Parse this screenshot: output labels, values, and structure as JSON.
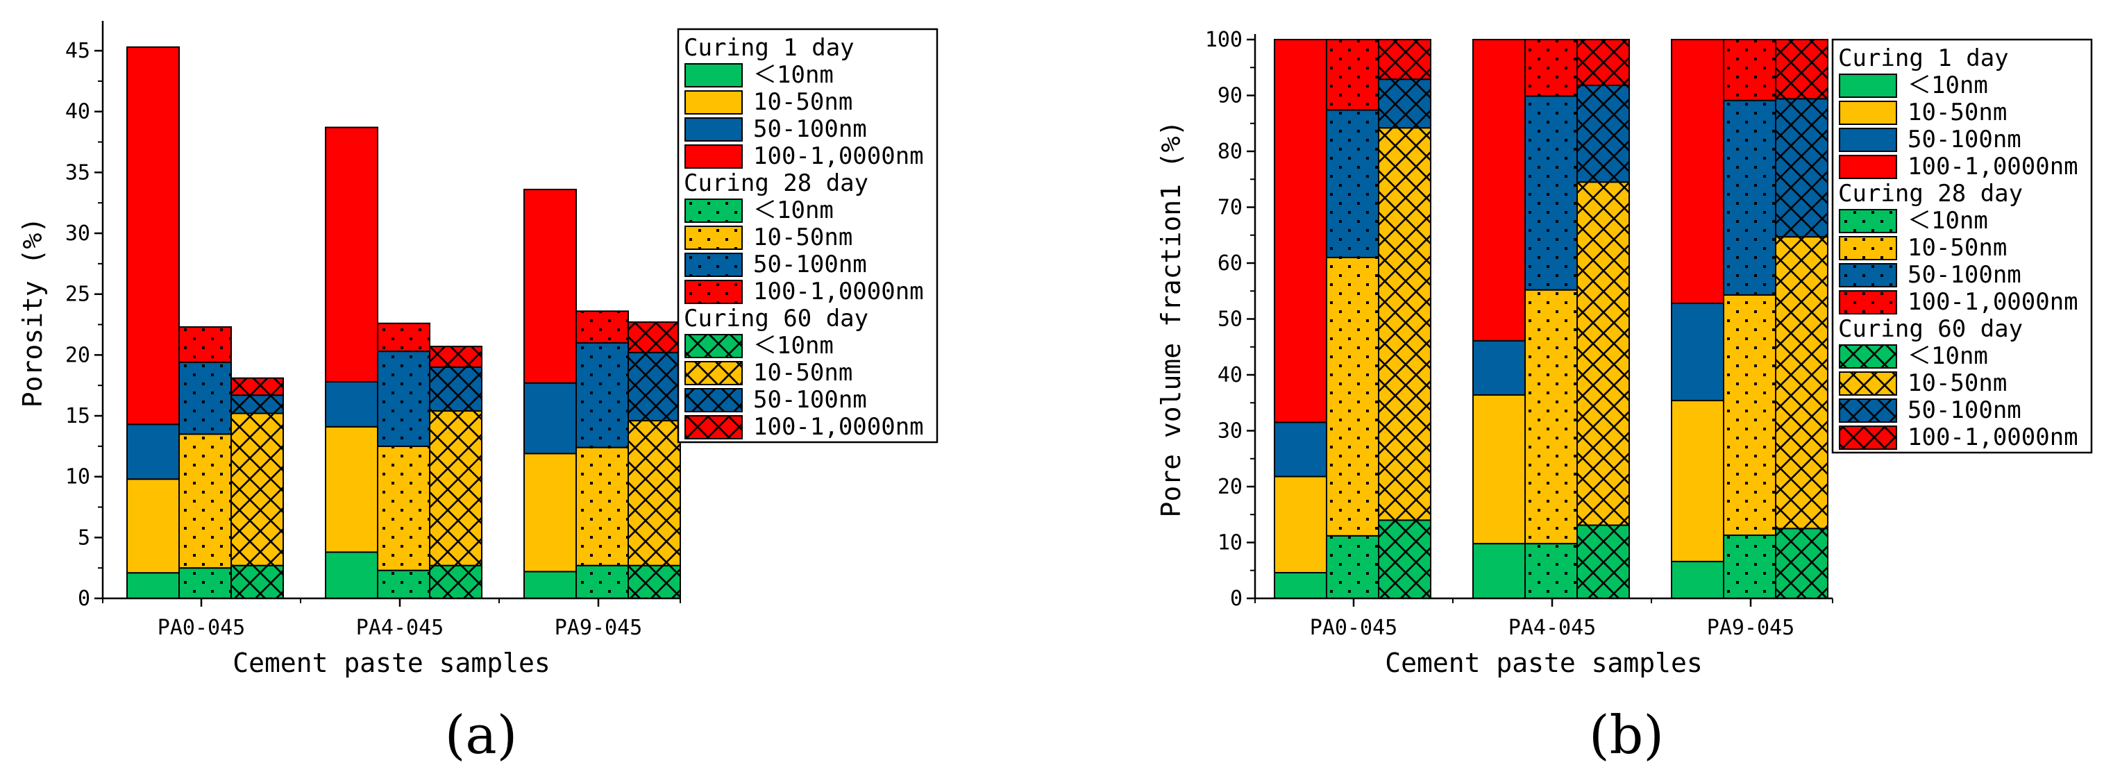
{
  "chart_data": [
    {
      "panel_label": "(a)",
      "type": "stacked-bar",
      "xlabel": "Cement paste samples",
      "ylabel": "Porosity (%)",
      "ylim": [
        0,
        47
      ],
      "yticks": [
        0,
        5,
        10,
        15,
        20,
        25,
        30,
        35,
        40,
        45
      ],
      "samples": [
        "PA0-045",
        "PA4-045",
        "PA9-045"
      ],
      "curing_groups": [
        "Curing 1 day",
        "Curing 28 day",
        "Curing 60 day"
      ],
      "pore_ranges": [
        "<10nm",
        "10-50nm",
        "50-100nm",
        "100-1,0000nm"
      ],
      "legend_labels": [
        "＜10nm",
        "10-50nm",
        "50-100nm",
        "100-1,0000nm"
      ],
      "colors": [
        "#00c060",
        "#ffc000",
        "#0060a0",
        "#ff0000"
      ],
      "patterns": [
        "solid",
        "dots",
        "crosshatch"
      ],
      "values": {
        "PA0-045": [
          [
            2.1,
            7.7,
            4.5,
            31.0
          ],
          [
            2.5,
            11.0,
            5.9,
            2.9
          ],
          [
            2.7,
            12.5,
            1.5,
            1.4
          ]
        ],
        "PA4-045": [
          [
            3.8,
            10.3,
            3.7,
            20.9
          ],
          [
            2.3,
            10.2,
            7.8,
            2.3
          ],
          [
            2.7,
            12.7,
            3.6,
            1.7
          ]
        ],
        "PA9-045": [
          [
            2.2,
            9.7,
            5.8,
            15.9
          ],
          [
            2.7,
            9.7,
            8.6,
            2.6
          ],
          [
            2.7,
            11.9,
            5.6,
            2.5
          ]
        ]
      },
      "legend_position": "top-right outside"
    },
    {
      "panel_label": "(b)",
      "type": "stacked-bar",
      "xlabel": "Cement paste samples",
      "ylabel": "Pore volume fraction1 (%)",
      "ylim": [
        0,
        100
      ],
      "yticks": [
        0,
        10,
        20,
        30,
        40,
        50,
        60,
        70,
        80,
        90,
        100
      ],
      "samples": [
        "PA0-045",
        "PA4-045",
        "PA9-045"
      ],
      "curing_groups": [
        "Curing 1 day",
        "Curing 28 day",
        "Curing 60 day"
      ],
      "pore_ranges": [
        "<10nm",
        "10-50nm",
        "50-100nm",
        "100-1,0000nm"
      ],
      "legend_labels": [
        "＜10nm",
        "10-50nm",
        "50-100nm",
        "100-1,0000nm"
      ],
      "colors": [
        "#00c060",
        "#ffc000",
        "#0060a0",
        "#ff0000"
      ],
      "patterns": [
        "solid",
        "dots",
        "crosshatch"
      ],
      "values": {
        "PA0-045": [
          [
            4.6,
            17.2,
            9.7,
            68.5
          ],
          [
            11.2,
            49.8,
            26.4,
            12.6
          ],
          [
            14.0,
            70.2,
            8.7,
            7.1
          ]
        ],
        "PA4-045": [
          [
            9.8,
            26.6,
            9.7,
            53.9
          ],
          [
            9.8,
            45.4,
            34.7,
            10.1
          ],
          [
            13.1,
            61.4,
            17.3,
            8.2
          ]
        ],
        "PA9-045": [
          [
            6.6,
            28.8,
            17.4,
            47.2
          ],
          [
            11.3,
            43.0,
            34.8,
            10.9
          ],
          [
            12.5,
            52.2,
            24.7,
            10.6
          ]
        ]
      },
      "legend_position": "top-right outside"
    }
  ]
}
